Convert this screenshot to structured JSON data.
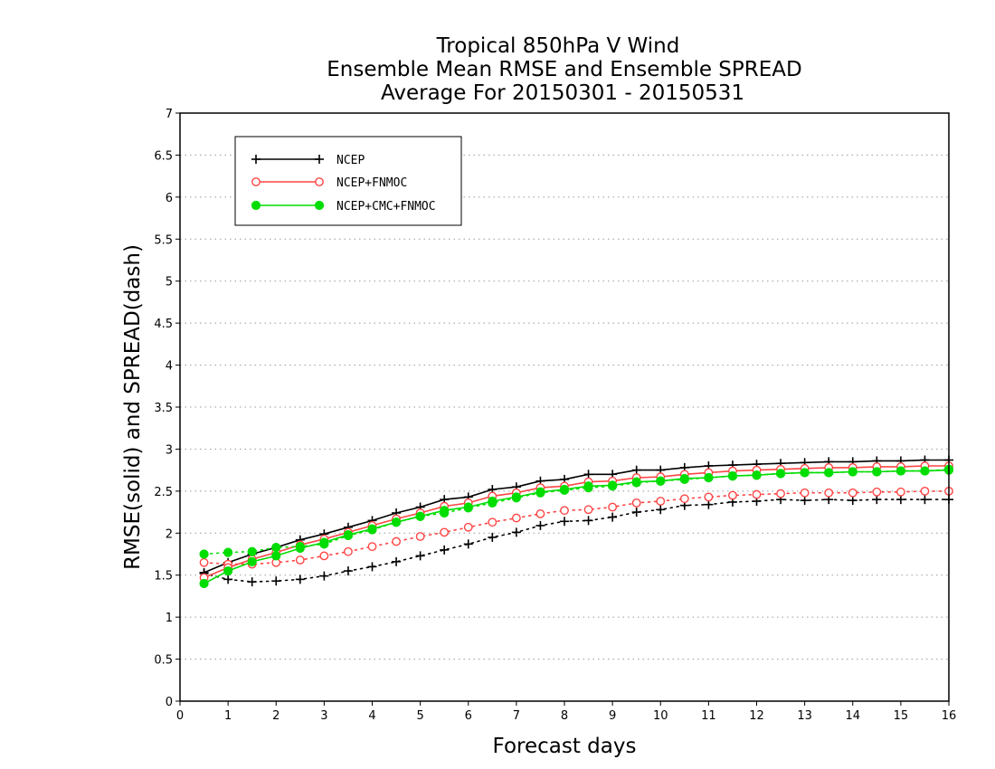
{
  "chart_data": {
    "type": "line",
    "title": [
      "Tropical 850hPa V Wind",
      "Ensemble Mean RMSE and Ensemble SPREAD",
      "Average For 20150301 - 20150531"
    ],
    "xlabel": "Forecast days",
    "ylabel": "RMSE(solid) and SPREAD(dash)",
    "xlim": [
      0,
      16
    ],
    "ylim": [
      0,
      7
    ],
    "xticks": [
      "0",
      "1",
      "2",
      "3",
      "4",
      "5",
      "6",
      "7",
      "8",
      "9",
      "10",
      "11",
      "12",
      "13",
      "14",
      "15",
      "16"
    ],
    "yticks": [
      "0",
      "0.5",
      "1",
      "1.5",
      "2",
      "2.5",
      "3",
      "3.5",
      "4",
      "4.5",
      "5",
      "5.5",
      "6",
      "6.5",
      "7"
    ],
    "grid": true,
    "legend_position": "top-left",
    "x": [
      0.5,
      1,
      1.5,
      2,
      2.5,
      3,
      3.5,
      4,
      4.5,
      5,
      5.5,
      6,
      6.5,
      7,
      7.5,
      8,
      8.5,
      9,
      9.5,
      10,
      10.5,
      11,
      11.5,
      12,
      12.5,
      13,
      13.5,
      14,
      14.5,
      15,
      15.5,
      16
    ],
    "series": [
      {
        "name": "NCEP",
        "color": "#000000",
        "marker": "plus",
        "rmse": [
          1.53,
          1.65,
          1.75,
          1.83,
          1.92,
          1.99,
          2.07,
          2.15,
          2.24,
          2.31,
          2.4,
          2.43,
          2.52,
          2.55,
          2.62,
          2.64,
          2.7,
          2.7,
          2.75,
          2.75,
          2.78,
          2.8,
          2.81,
          2.82,
          2.83,
          2.84,
          2.85,
          2.85,
          2.86,
          2.86,
          2.87,
          2.87
        ],
        "spread": [
          1.52,
          1.45,
          1.42,
          1.43,
          1.45,
          1.49,
          1.55,
          1.6,
          1.66,
          1.73,
          1.8,
          1.87,
          1.95,
          2.01,
          2.09,
          2.14,
          2.15,
          2.19,
          2.25,
          2.28,
          2.33,
          2.34,
          2.37,
          2.38,
          2.4,
          2.39,
          2.4,
          2.39,
          2.4,
          2.4,
          2.4,
          2.4
        ]
      },
      {
        "name": "NCEP+FNMOC",
        "color": "#ff4444",
        "marker": "open-circle",
        "rmse": [
          1.47,
          1.59,
          1.69,
          1.77,
          1.86,
          1.93,
          2.01,
          2.09,
          2.17,
          2.24,
          2.32,
          2.36,
          2.44,
          2.48,
          2.54,
          2.56,
          2.61,
          2.62,
          2.66,
          2.67,
          2.7,
          2.72,
          2.74,
          2.75,
          2.76,
          2.77,
          2.78,
          2.78,
          2.79,
          2.79,
          2.8,
          2.8
        ],
        "spread": [
          1.65,
          1.63,
          1.63,
          1.65,
          1.68,
          1.73,
          1.78,
          1.84,
          1.9,
          1.96,
          2.01,
          2.07,
          2.13,
          2.18,
          2.23,
          2.27,
          2.28,
          2.31,
          2.36,
          2.38,
          2.41,
          2.43,
          2.45,
          2.46,
          2.47,
          2.48,
          2.48,
          2.48,
          2.49,
          2.49,
          2.5,
          2.5
        ]
      },
      {
        "name": "NCEP+CMC+FNMOC",
        "color": "#00dd00",
        "marker": "filled-circle",
        "rmse": [
          1.4,
          1.55,
          1.66,
          1.73,
          1.82,
          1.89,
          1.98,
          2.05,
          2.13,
          2.2,
          2.27,
          2.31,
          2.38,
          2.43,
          2.49,
          2.52,
          2.56,
          2.57,
          2.61,
          2.62,
          2.65,
          2.66,
          2.68,
          2.69,
          2.71,
          2.72,
          2.72,
          2.73,
          2.73,
          2.74,
          2.74,
          2.75
        ],
        "spread": [
          1.75,
          1.77,
          1.78,
          1.83,
          1.84,
          1.87,
          1.97,
          2.04,
          2.13,
          2.2,
          2.24,
          2.3,
          2.36,
          2.42,
          2.48,
          2.51,
          2.54,
          2.56,
          2.6,
          2.62,
          2.64,
          2.66,
          2.68,
          2.69,
          2.71,
          2.72,
          2.72,
          2.73,
          2.73,
          2.74,
          2.74,
          2.76
        ]
      }
    ]
  }
}
